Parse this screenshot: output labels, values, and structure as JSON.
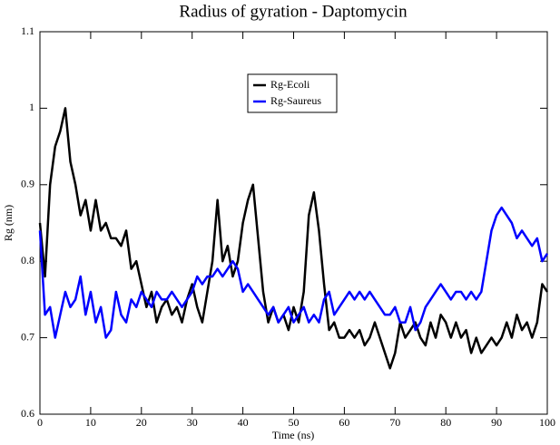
{
  "chart_data": {
    "type": "line",
    "title": "Radius of gyration - Daptomycin",
    "xlabel": "Time (ns)",
    "ylabel": "Rg (nm)",
    "x": [
      0,
      1,
      2,
      3,
      4,
      5,
      6,
      7,
      8,
      9,
      10,
      11,
      12,
      13,
      14,
      15,
      16,
      17,
      18,
      19,
      20,
      21,
      22,
      23,
      24,
      25,
      26,
      27,
      28,
      29,
      30,
      31,
      32,
      33,
      34,
      35,
      36,
      37,
      38,
      39,
      40,
      41,
      42,
      43,
      44,
      45,
      46,
      47,
      48,
      49,
      50,
      51,
      52,
      53,
      54,
      55,
      56,
      57,
      58,
      59,
      60,
      61,
      62,
      63,
      64,
      65,
      66,
      67,
      68,
      69,
      70,
      71,
      72,
      73,
      74,
      75,
      76,
      77,
      78,
      79,
      80,
      81,
      82,
      83,
      84,
      85,
      86,
      87,
      88,
      89,
      90,
      91,
      92,
      93,
      94,
      95,
      96,
      97,
      98,
      99,
      100
    ],
    "series": [
      {
        "name": "Rg-Ecoli",
        "color": "#000000",
        "values": [
          0.85,
          0.78,
          0.9,
          0.95,
          0.97,
          1.0,
          0.93,
          0.9,
          0.86,
          0.88,
          0.84,
          0.88,
          0.84,
          0.85,
          0.83,
          0.83,
          0.82,
          0.84,
          0.79,
          0.8,
          0.77,
          0.74,
          0.76,
          0.72,
          0.74,
          0.75,
          0.73,
          0.74,
          0.72,
          0.75,
          0.77,
          0.74,
          0.72,
          0.76,
          0.8,
          0.88,
          0.8,
          0.82,
          0.78,
          0.8,
          0.85,
          0.88,
          0.9,
          0.83,
          0.76,
          0.72,
          0.74,
          0.72,
          0.73,
          0.71,
          0.74,
          0.72,
          0.76,
          0.86,
          0.89,
          0.84,
          0.77,
          0.71,
          0.72,
          0.7,
          0.7,
          0.71,
          0.7,
          0.71,
          0.69,
          0.7,
          0.72,
          0.7,
          0.68,
          0.66,
          0.68,
          0.72,
          0.7,
          0.71,
          0.72,
          0.7,
          0.69,
          0.72,
          0.7,
          0.73,
          0.72,
          0.7,
          0.72,
          0.7,
          0.71,
          0.68,
          0.7,
          0.68,
          0.69,
          0.7,
          0.69,
          0.7,
          0.72,
          0.7,
          0.73,
          0.71,
          0.72,
          0.7,
          0.72,
          0.77,
          0.76
        ]
      },
      {
        "name": "Rg-Saureus",
        "color": "#0000ff",
        "values": [
          0.84,
          0.73,
          0.74,
          0.7,
          0.73,
          0.76,
          0.74,
          0.75,
          0.78,
          0.73,
          0.76,
          0.72,
          0.74,
          0.7,
          0.71,
          0.76,
          0.73,
          0.72,
          0.75,
          0.74,
          0.76,
          0.75,
          0.74,
          0.76,
          0.75,
          0.75,
          0.76,
          0.75,
          0.74,
          0.75,
          0.76,
          0.78,
          0.77,
          0.78,
          0.78,
          0.79,
          0.78,
          0.79,
          0.8,
          0.79,
          0.76,
          0.77,
          0.76,
          0.75,
          0.74,
          0.73,
          0.74,
          0.72,
          0.73,
          0.74,
          0.72,
          0.73,
          0.74,
          0.72,
          0.73,
          0.72,
          0.75,
          0.76,
          0.73,
          0.74,
          0.75,
          0.76,
          0.75,
          0.76,
          0.75,
          0.76,
          0.75,
          0.74,
          0.73,
          0.73,
          0.74,
          0.72,
          0.72,
          0.74,
          0.71,
          0.72,
          0.74,
          0.75,
          0.76,
          0.77,
          0.76,
          0.75,
          0.76,
          0.76,
          0.75,
          0.76,
          0.75,
          0.76,
          0.8,
          0.84,
          0.86,
          0.87,
          0.86,
          0.85,
          0.83,
          0.84,
          0.83,
          0.82,
          0.83,
          0.8,
          0.81
        ]
      }
    ],
    "xlim": [
      0,
      100
    ],
    "xticks": [
      0,
      10,
      20,
      30,
      40,
      50,
      60,
      70,
      80,
      90,
      100
    ],
    "ylim": [
      0.6,
      1.1
    ],
    "yticks": [
      0.6,
      0.7,
      0.8,
      0.9,
      1,
      1.1
    ]
  }
}
